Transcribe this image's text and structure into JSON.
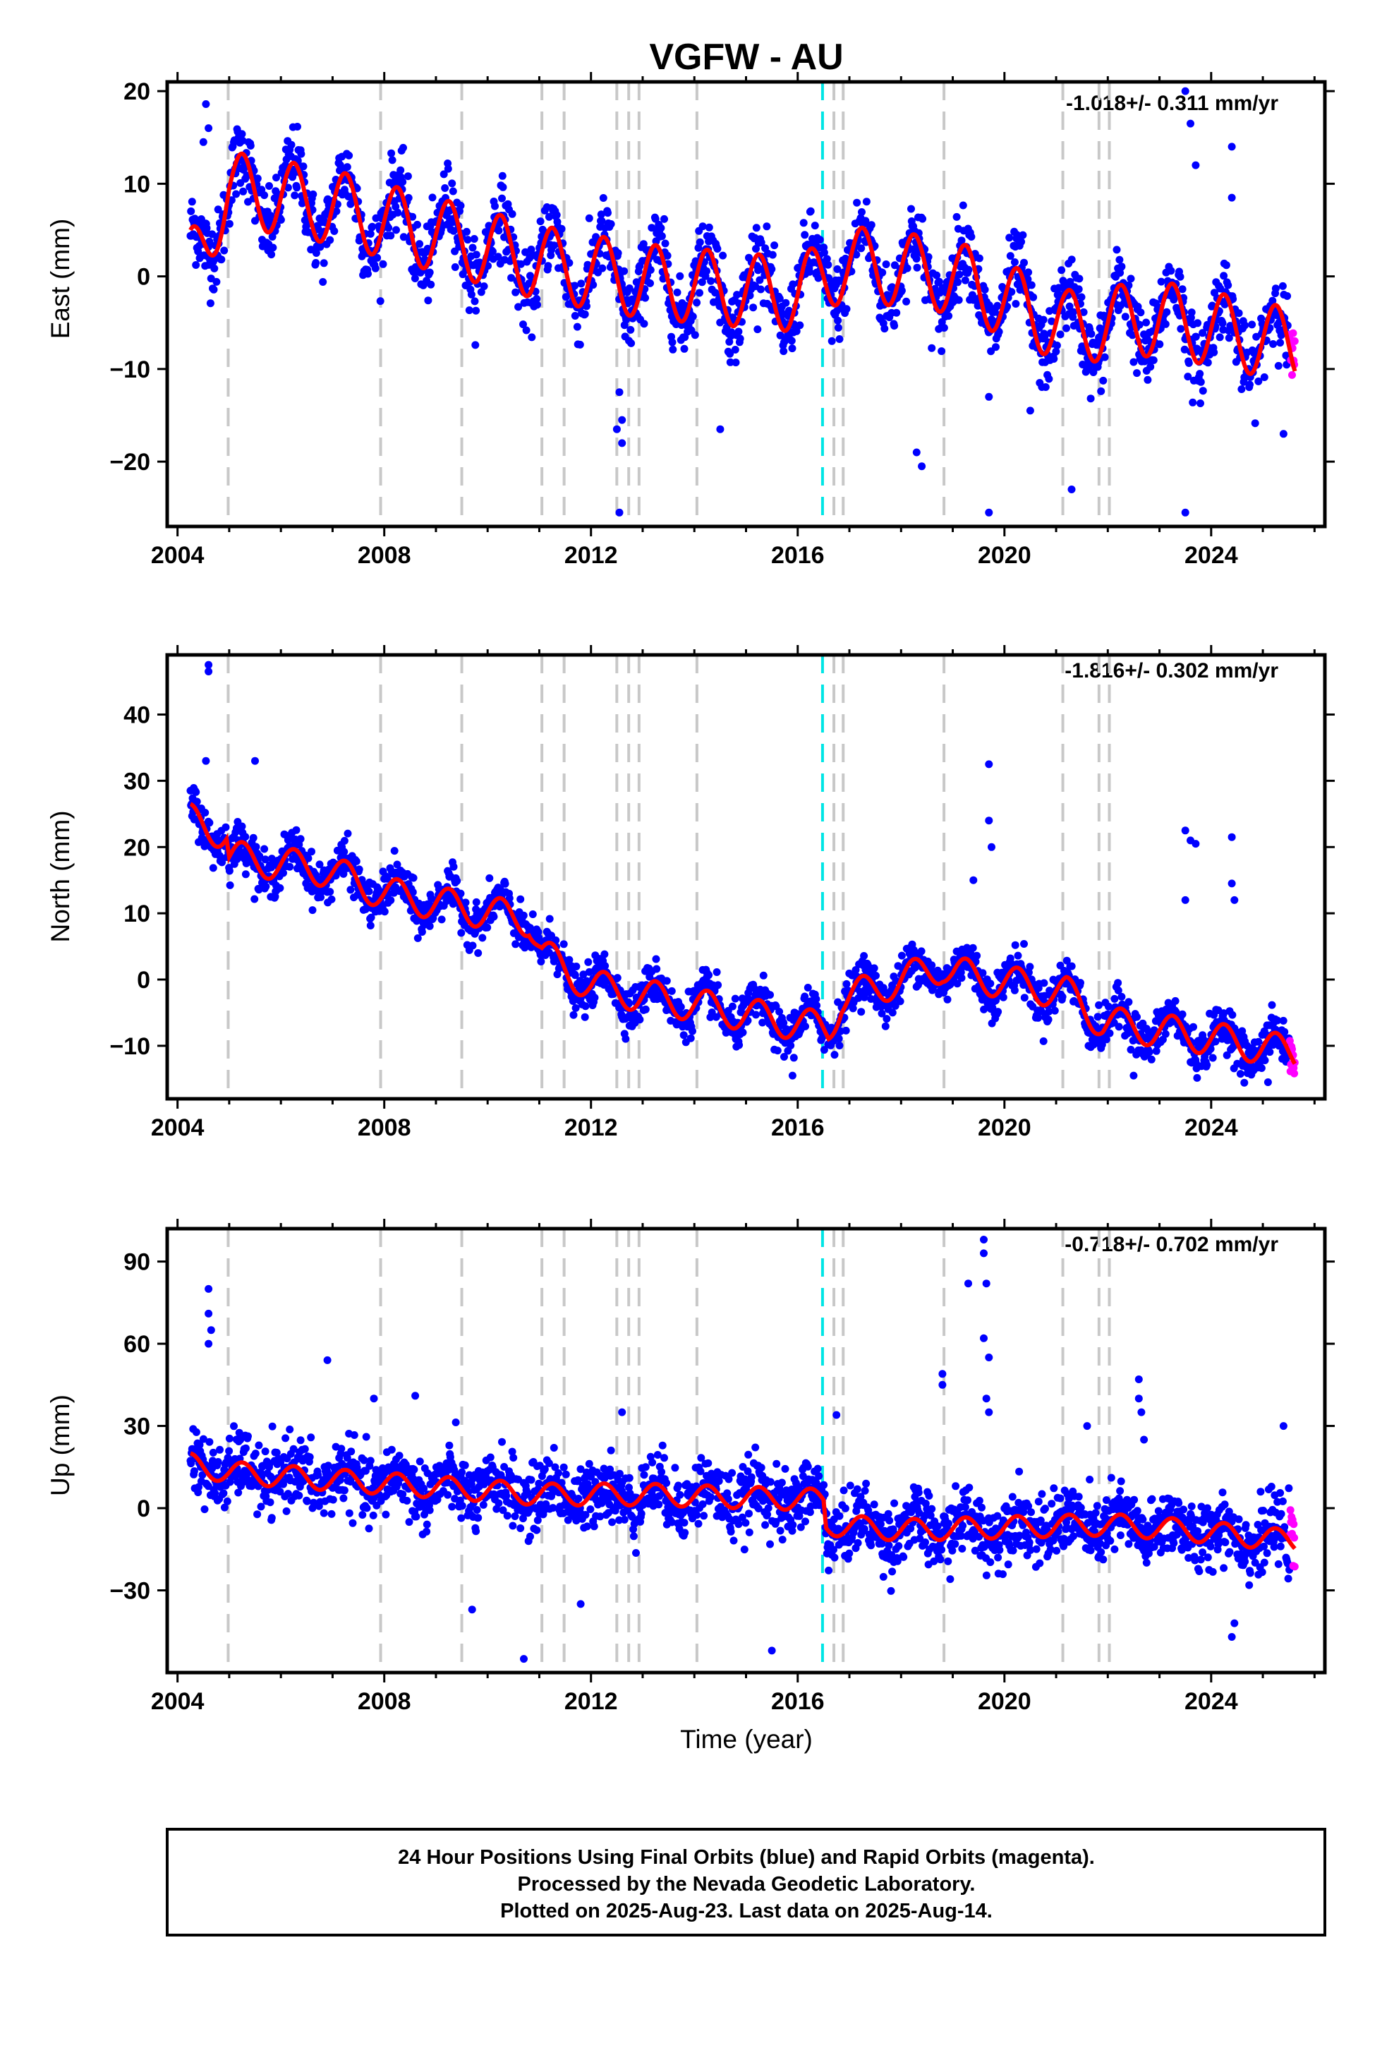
{
  "title": "VGFW - AU",
  "xlabel": "Time (year)",
  "footer": {
    "line1": "24 Hour Positions Using Final Orbits (blue) and Rapid Orbits (magenta).",
    "line2": "Processed by the Nevada Geodetic Laboratory.",
    "line3": "Plotted on 2025-Aug-23. Last data on 2025-Aug-14."
  },
  "colors": {
    "final": "#0000ff",
    "rapid": "#ff00ff",
    "model": "#ff0000",
    "offset": "#c8c8c8",
    "offset_special": "#00e5e5"
  },
  "chart_data": [
    {
      "type": "scatter",
      "component": "east",
      "ylabel": "East (mm)",
      "rate": "-1.018+/- 0.311 mm/yr",
      "xlim": [
        2003.8,
        2026.2
      ],
      "ylim": [
        -27,
        21
      ],
      "xticks": [
        2004,
        2008,
        2012,
        2016,
        2020,
        2024
      ],
      "yticks": [
        -20,
        -10,
        0,
        10,
        20
      ],
      "grid": false,
      "data_start": 2004.25,
      "data_end": 2025.62,
      "rapid_start": 2025.52,
      "trend": [
        [
          2004.25,
          1.0
        ],
        [
          2005.0,
          9.5
        ],
        [
          2007.0,
          7.5
        ],
        [
          2009.0,
          4.5
        ],
        [
          2011.0,
          1.5
        ],
        [
          2013.0,
          -0.5
        ],
        [
          2016.0,
          -2.0
        ],
        [
          2016.9,
          1.5
        ],
        [
          2019.0,
          0.0
        ],
        [
          2021.2,
          -5.5
        ],
        [
          2023.0,
          -4.5
        ],
        [
          2025.6,
          -7.5
        ]
      ],
      "amplitude": 4.0,
      "noise": 2.0,
      "outliers": [
        [
          2004.55,
          18.6
        ],
        [
          2004.5,
          14.5
        ],
        [
          2012.55,
          -25.5
        ],
        [
          2012.5,
          -16.5
        ],
        [
          2012.6,
          -15.5
        ],
        [
          2012.55,
          -12.5
        ],
        [
          2012.6,
          -18.0
        ],
        [
          2014.5,
          -16.5
        ],
        [
          2018.3,
          -19.0
        ],
        [
          2018.4,
          -20.5
        ],
        [
          2019.7,
          -25.5
        ],
        [
          2019.7,
          -13.0
        ],
        [
          2020.5,
          -14.5
        ],
        [
          2021.3,
          -23.0
        ],
        [
          2023.5,
          20.0
        ],
        [
          2023.5,
          -25.5
        ],
        [
          2023.6,
          16.5
        ],
        [
          2023.7,
          12.0
        ],
        [
          2024.4,
          14.0
        ],
        [
          2024.4,
          8.5
        ],
        [
          2004.6,
          16.0
        ],
        [
          2025.4,
          -17.0
        ]
      ]
    },
    {
      "type": "scatter",
      "component": "north",
      "ylabel": "North (mm)",
      "rate": "-1.816+/- 0.302 mm/yr",
      "xlim": [
        2003.8,
        2026.2
      ],
      "ylim": [
        -18,
        49
      ],
      "xticks": [
        2004,
        2008,
        2012,
        2016,
        2020,
        2024
      ],
      "yticks": [
        -10,
        0,
        10,
        20,
        30,
        40
      ],
      "grid": false,
      "data_start": 2004.25,
      "data_end": 2025.62,
      "rapid_start": 2025.52,
      "trend": [
        [
          2004.25,
          24.0
        ],
        [
          2004.95,
          22.0
        ],
        [
          2005.0,
          18.5
        ],
        [
          2006.9,
          16.5
        ],
        [
          2008.0,
          13.0
        ],
        [
          2010.8,
          9.0
        ],
        [
          2011.05,
          4.0
        ],
        [
          2011.5,
          1.5
        ],
        [
          2012.0,
          -1.0
        ],
        [
          2016.6,
          -7.5
        ],
        [
          2016.85,
          -3.0
        ],
        [
          2018.8,
          2.0
        ],
        [
          2019.0,
          1.0
        ],
        [
          2021.2,
          -2.0
        ],
        [
          2021.9,
          -6.5
        ],
        [
          2023.3,
          -8.0
        ],
        [
          2025.6,
          -11.0
        ]
      ],
      "amplitude": 2.5,
      "noise": 1.6,
      "outliers": [
        [
          2004.6,
          47.5
        ],
        [
          2004.6,
          46.5
        ],
        [
          2004.55,
          33.0
        ],
        [
          2005.5,
          33.0
        ],
        [
          2019.7,
          32.5
        ],
        [
          2019.7,
          24.0
        ],
        [
          2019.75,
          20.0
        ],
        [
          2019.4,
          15.0
        ],
        [
          2023.5,
          22.5
        ],
        [
          2023.6,
          21.0
        ],
        [
          2023.7,
          20.5
        ],
        [
          2023.5,
          12.0
        ],
        [
          2024.4,
          21.5
        ],
        [
          2024.4,
          14.5
        ],
        [
          2024.45,
          12.0
        ],
        [
          2015.9,
          -14.5
        ],
        [
          2025.1,
          -15.5
        ],
        [
          2022.5,
          -14.5
        ]
      ]
    },
    {
      "type": "scatter",
      "component": "up",
      "ylabel": "Up (mm)",
      "rate": "-0.718+/- 0.702 mm/yr",
      "xlim": [
        2003.8,
        2026.2
      ],
      "ylim": [
        -60,
        102
      ],
      "xticks": [
        2004,
        2008,
        2012,
        2016,
        2020,
        2024
      ],
      "yticks": [
        -30,
        0,
        30,
        60,
        90
      ],
      "grid": false,
      "data_start": 2004.25,
      "data_end": 2025.62,
      "rapid_start": 2025.52,
      "trend": [
        [
          2004.25,
          16.0
        ],
        [
          2005.0,
          13.0
        ],
        [
          2008.0,
          9.0
        ],
        [
          2011.0,
          5.0
        ],
        [
          2013.0,
          5.0
        ],
        [
          2016.5,
          3.0
        ],
        [
          2016.55,
          -6.0
        ],
        [
          2018.0,
          -8.0
        ],
        [
          2020.0,
          -7.0
        ],
        [
          2022.0,
          -6.0
        ],
        [
          2023.5,
          -8.0
        ],
        [
          2025.6,
          -12.0
        ]
      ],
      "amplitude": 4.0,
      "noise": 6.0,
      "outliers": [
        [
          2004.6,
          80.0
        ],
        [
          2004.6,
          71.0
        ],
        [
          2004.65,
          65.0
        ],
        [
          2004.6,
          60.0
        ],
        [
          2006.9,
          54.0
        ],
        [
          2007.8,
          40.0
        ],
        [
          2008.6,
          41.0
        ],
        [
          2009.7,
          -37.0
        ],
        [
          2010.7,
          -55.0
        ],
        [
          2015.5,
          -52.0
        ],
        [
          2018.8,
          49.0
        ],
        [
          2018.8,
          45.0
        ],
        [
          2019.3,
          82.0
        ],
        [
          2019.6,
          98.0
        ],
        [
          2019.6,
          93.0
        ],
        [
          2019.65,
          82.0
        ],
        [
          2019.6,
          62.0
        ],
        [
          2019.7,
          55.0
        ],
        [
          2019.65,
          40.0
        ],
        [
          2019.7,
          35.0
        ],
        [
          2021.6,
          30.0
        ],
        [
          2022.6,
          47.0
        ],
        [
          2022.6,
          40.0
        ],
        [
          2022.65,
          35.0
        ],
        [
          2022.7,
          25.0
        ],
        [
          2024.4,
          -47.0
        ],
        [
          2024.45,
          -42.0
        ],
        [
          2025.4,
          30.0
        ],
        [
          2016.75,
          34.0
        ],
        [
          2012.6,
          35.0
        ],
        [
          2011.8,
          -35.0
        ]
      ]
    }
  ],
  "offsets": {
    "gray": [
      2004.98,
      2007.93,
      2009.5,
      2011.05,
      2011.48,
      2012.5,
      2012.73,
      2012.93,
      2014.05,
      2016.7,
      2016.88,
      2018.83,
      2021.13,
      2021.83,
      2022.03
    ],
    "cyan": [
      2016.48
    ]
  }
}
